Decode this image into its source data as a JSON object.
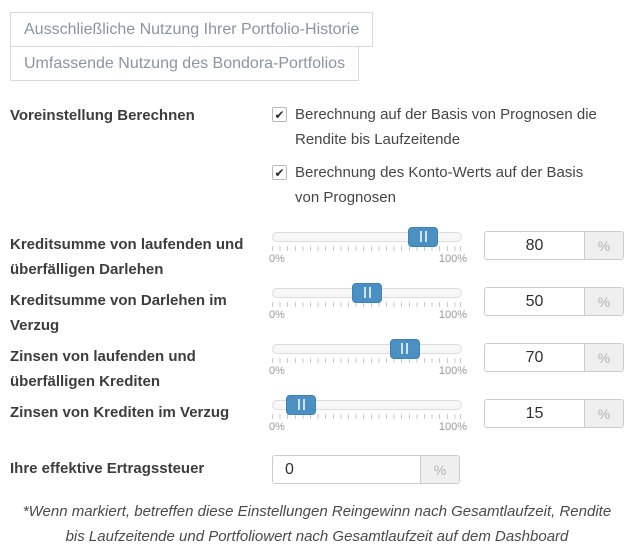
{
  "colors": {
    "accent_blue": "#4a90c2",
    "button_text": "#8c94a2",
    "border": "#d9d9d9",
    "label_text": "#3d3d3d",
    "scale_text": "#9a9a9a",
    "suffix_bg": "#efefef"
  },
  "icons": {
    "check": "✔"
  },
  "buttons": {
    "history": {
      "label": "Ausschließliche Nutzung Ihrer Portfolio-Historie"
    },
    "bondora": {
      "label": "Umfassende Nutzung des Bondora-Portfolios"
    }
  },
  "preset": {
    "label": "Voreinstellung Berechnen",
    "checkboxes": [
      {
        "label": "Berechnung auf der Basis von Prognosen die Rendite bis Laufzeitende",
        "checked": true
      },
      {
        "label": "Berechnung des Konto-Werts auf der Basis von Prognosen",
        "checked": true
      }
    ]
  },
  "sliders": [
    {
      "label": "Kreditsumme von laufenden und überfälligen Darlehen",
      "value": 80,
      "unit": "%",
      "min_label": "0%",
      "max_label": "100%"
    },
    {
      "label": "Kreditsumme von Darlehen im Verzug",
      "value": 50,
      "unit": "%",
      "min_label": "0%",
      "max_label": "100%"
    },
    {
      "label": "Zinsen von laufenden und überfälligen Krediten",
      "value": 70,
      "unit": "%",
      "min_label": "0%",
      "max_label": "100%"
    },
    {
      "label": "Zinsen von Krediten im Verzug",
      "value": 15,
      "unit": "%",
      "min_label": "0%",
      "max_label": "100%"
    }
  ],
  "tax": {
    "label": "Ihre effektive Ertragssteuer",
    "value": "0",
    "unit": "%"
  },
  "footnote": "*Wenn markiert, betreffen diese Einstellungen Reingewinn nach Gesamtlaufzeit, Rendite bis Laufzeitende und Portfoliowert nach Gesamtlaufzeit auf dem Dashboard"
}
